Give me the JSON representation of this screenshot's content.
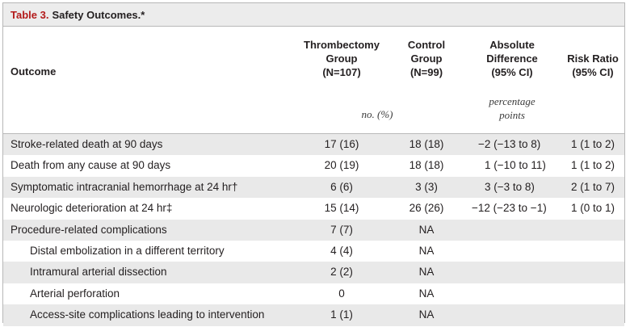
{
  "title": {
    "label": "Table 3.",
    "text": "Safety Outcomes.*"
  },
  "header": {
    "outcome": "Outcome",
    "thrombectomy": [
      "Thrombectomy",
      "Group",
      "(N=107)"
    ],
    "control": [
      "Control",
      "Group",
      "(N=99)"
    ],
    "difference": [
      "Absolute",
      "Difference",
      "(95% CI)"
    ],
    "risk": [
      "Risk Ratio",
      "(95% CI)"
    ],
    "unit_groups": "no. (%)",
    "unit_difference": [
      "percentage",
      "points"
    ]
  },
  "rows": [
    {
      "label": "Stroke-related death at 90 days",
      "t": "17 (16)",
      "c": "18 (18)",
      "d": "−2 (−13 to 8)",
      "r": "1 (1 to 2)"
    },
    {
      "label": "Death from any cause at 90 days",
      "t": "20 (19)",
      "c": "18 (18)",
      "d": "1 (−10 to 11)",
      "r": "1 (1 to 2)"
    },
    {
      "label": "Symptomatic intracranial hemorrhage at 24 hr†",
      "t": "6 (6)",
      "c": "3 (3)",
      "d": "3 (−3 to 8)",
      "r": "2 (1 to 7)"
    },
    {
      "label": "Neurologic deterioration at 24 hr‡",
      "t": "15 (14)",
      "c": "26 (26)",
      "d": "−12 (−23 to −1)",
      "r": "1 (0 to 1)"
    },
    {
      "label": "Procedure-related complications",
      "t": "7 (7)",
      "c": "NA",
      "d": "",
      "r": ""
    },
    {
      "label": "Distal embolization in a different territory",
      "t": "4 (4)",
      "c": "NA",
      "d": "",
      "r": ""
    },
    {
      "label": "Intramural arterial dissection",
      "t": "2 (2)",
      "c": "NA",
      "d": "",
      "r": ""
    },
    {
      "label": "Arterial perforation",
      "t": "0",
      "c": "NA",
      "d": "",
      "r": ""
    },
    {
      "label": "Access-site complications leading to intervention",
      "t": "1 (1)",
      "c": "NA",
      "d": "",
      "r": ""
    }
  ]
}
